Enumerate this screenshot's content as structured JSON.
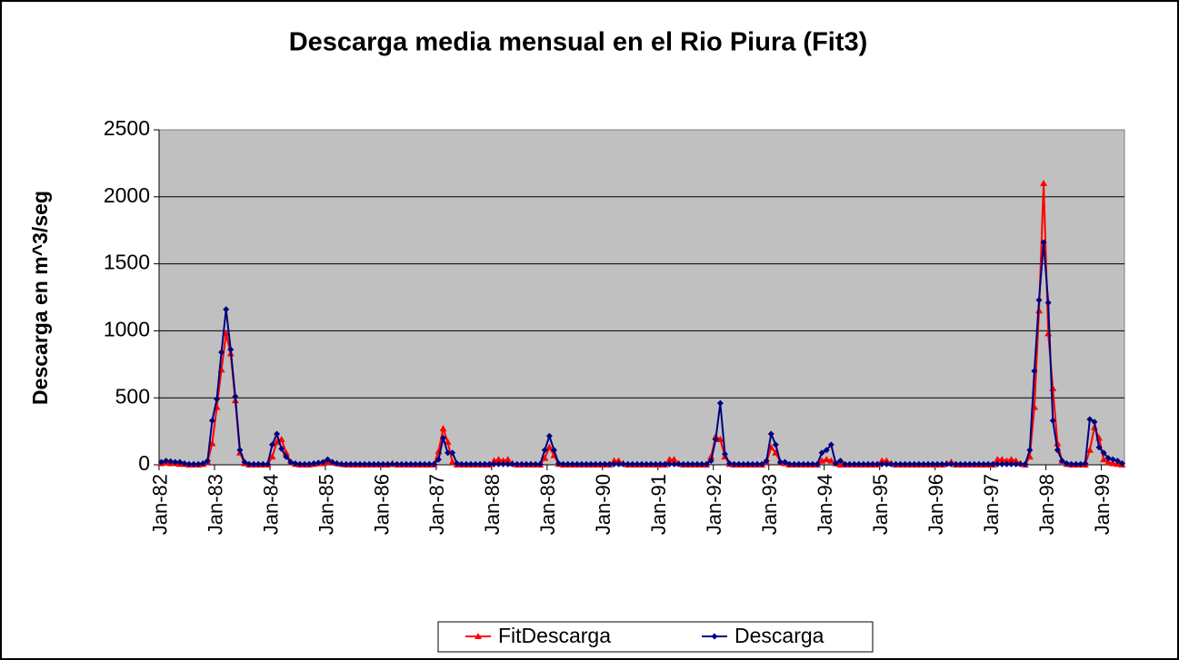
{
  "chart_data": {
    "type": "line",
    "title": "Descarga media mensual en el Rio Piura (Fit3)",
    "y_label": "Descarga en m^3/seg",
    "categories": [
      "Jan-82",
      null,
      null,
      null,
      null,
      null,
      null,
      null,
      null,
      null,
      null,
      null,
      "Jan-83",
      null,
      null,
      null,
      null,
      null,
      null,
      null,
      null,
      null,
      null,
      null,
      "Jan-84",
      null,
      null,
      null,
      null,
      null,
      null,
      null,
      null,
      null,
      null,
      null,
      "Jan-85",
      null,
      null,
      null,
      null,
      null,
      null,
      null,
      null,
      null,
      null,
      null,
      "Jan-86",
      null,
      null,
      null,
      null,
      null,
      null,
      null,
      null,
      null,
      null,
      null,
      "Jan-87",
      null,
      null,
      null,
      null,
      null,
      null,
      null,
      null,
      null,
      null,
      null,
      "Jan-88",
      null,
      null,
      null,
      null,
      null,
      null,
      null,
      null,
      null,
      null,
      null,
      "Jan-89",
      null,
      null,
      null,
      null,
      null,
      null,
      null,
      null,
      null,
      null,
      null,
      "Jan-90",
      null,
      null,
      null,
      null,
      null,
      null,
      null,
      null,
      null,
      null,
      null,
      "Jan-91",
      null,
      null,
      null,
      null,
      null,
      null,
      null,
      null,
      null,
      null,
      null,
      "Jan-92",
      null,
      null,
      null,
      null,
      null,
      null,
      null,
      null,
      null,
      null,
      null,
      "Jan-93",
      null,
      null,
      null,
      null,
      null,
      null,
      null,
      null,
      null,
      null,
      null,
      "Jan-94",
      null,
      null,
      null,
      null,
      null,
      null,
      null,
      null,
      null,
      null,
      null,
      "Jan-95",
      null,
      null,
      null,
      null,
      null,
      null,
      null,
      null,
      null,
      null,
      null,
      "Jan-96",
      null,
      null,
      null,
      null,
      null,
      null,
      null,
      null,
      null,
      null,
      null,
      "Jan-97",
      null,
      null,
      null,
      null,
      null,
      null,
      null,
      null,
      null,
      null,
      null,
      "Jan-98",
      null,
      null,
      null,
      null,
      null,
      null,
      null,
      null,
      null,
      null,
      null,
      "Jan-99",
      null,
      null,
      null,
      null
    ],
    "series": [
      {
        "name": "FitDescarga",
        "color": "#ff0000",
        "marker": "triangle",
        "values": [
          10,
          15,
          10,
          10,
          5,
          5,
          0,
          0,
          0,
          5,
          20,
          160,
          430,
          710,
          980,
          830,
          480,
          90,
          10,
          0,
          0,
          0,
          0,
          0,
          60,
          170,
          190,
          90,
          20,
          5,
          0,
          0,
          0,
          5,
          10,
          10,
          20,
          20,
          10,
          5,
          0,
          0,
          0,
          0,
          0,
          0,
          0,
          0,
          0,
          0,
          10,
          0,
          0,
          0,
          0,
          0,
          0,
          0,
          0,
          0,
          100,
          270,
          170,
          20,
          0,
          0,
          0,
          0,
          0,
          0,
          0,
          0,
          30,
          40,
          30,
          40,
          10,
          0,
          0,
          0,
          0,
          0,
          0,
          50,
          130,
          70,
          5,
          0,
          0,
          0,
          0,
          0,
          0,
          0,
          0,
          0,
          0,
          0,
          30,
          30,
          10,
          0,
          0,
          0,
          0,
          0,
          0,
          0,
          0,
          0,
          40,
          40,
          10,
          0,
          0,
          0,
          0,
          0,
          0,
          60,
          210,
          190,
          60,
          5,
          0,
          0,
          0,
          0,
          0,
          0,
          0,
          20,
          130,
          90,
          20,
          10,
          0,
          0,
          0,
          0,
          0,
          0,
          0,
          30,
          40,
          30,
          10,
          0,
          0,
          0,
          0,
          0,
          0,
          0,
          0,
          0,
          30,
          30,
          10,
          0,
          0,
          0,
          0,
          0,
          0,
          0,
          0,
          0,
          0,
          0,
          10,
          20,
          0,
          0,
          0,
          0,
          0,
          0,
          0,
          0,
          0,
          40,
          40,
          30,
          40,
          30,
          10,
          0,
          60,
          430,
          1150,
          2100,
          980,
          570,
          160,
          30,
          5,
          0,
          0,
          0,
          0,
          110,
          280,
          200,
          40,
          20,
          10,
          5,
          0
        ]
      },
      {
        "name": "Descarga",
        "color": "#000080",
        "marker": "diamond",
        "values": [
          20,
          30,
          25,
          20,
          20,
          10,
          5,
          5,
          5,
          10,
          30,
          330,
          490,
          840,
          1160,
          860,
          510,
          110,
          20,
          5,
          5,
          5,
          5,
          5,
          150,
          230,
          120,
          60,
          20,
          10,
          5,
          5,
          5,
          10,
          15,
          20,
          40,
          20,
          10,
          5,
          5,
          5,
          5,
          5,
          5,
          5,
          5,
          5,
          5,
          5,
          5,
          5,
          5,
          5,
          5,
          5,
          5,
          5,
          5,
          5,
          40,
          200,
          90,
          90,
          10,
          5,
          5,
          5,
          5,
          5,
          5,
          5,
          5,
          5,
          5,
          5,
          5,
          5,
          5,
          5,
          5,
          5,
          5,
          110,
          215,
          110,
          10,
          5,
          5,
          5,
          5,
          5,
          5,
          5,
          5,
          5,
          5,
          5,
          5,
          5,
          5,
          5,
          5,
          5,
          5,
          5,
          5,
          5,
          5,
          5,
          5,
          5,
          5,
          5,
          5,
          5,
          5,
          5,
          5,
          30,
          190,
          460,
          80,
          10,
          5,
          5,
          5,
          5,
          5,
          5,
          5,
          30,
          230,
          150,
          20,
          20,
          5,
          5,
          5,
          5,
          5,
          5,
          5,
          90,
          110,
          150,
          10,
          30,
          5,
          5,
          5,
          5,
          5,
          5,
          5,
          5,
          5,
          5,
          5,
          5,
          5,
          5,
          5,
          5,
          5,
          5,
          5,
          5,
          5,
          5,
          5,
          5,
          5,
          5,
          5,
          5,
          5,
          5,
          5,
          5,
          5,
          5,
          5,
          5,
          5,
          5,
          5,
          5,
          110,
          700,
          1230,
          1660,
          1210,
          330,
          110,
          30,
          10,
          5,
          5,
          5,
          10,
          340,
          320,
          130,
          90,
          50,
          40,
          30,
          10
        ]
      }
    ],
    "ylim": [
      0,
      2500
    ],
    "yticks": [
      0,
      500,
      1000,
      1500,
      2000,
      2500
    ],
    "grid": true,
    "legend": "bottom"
  }
}
